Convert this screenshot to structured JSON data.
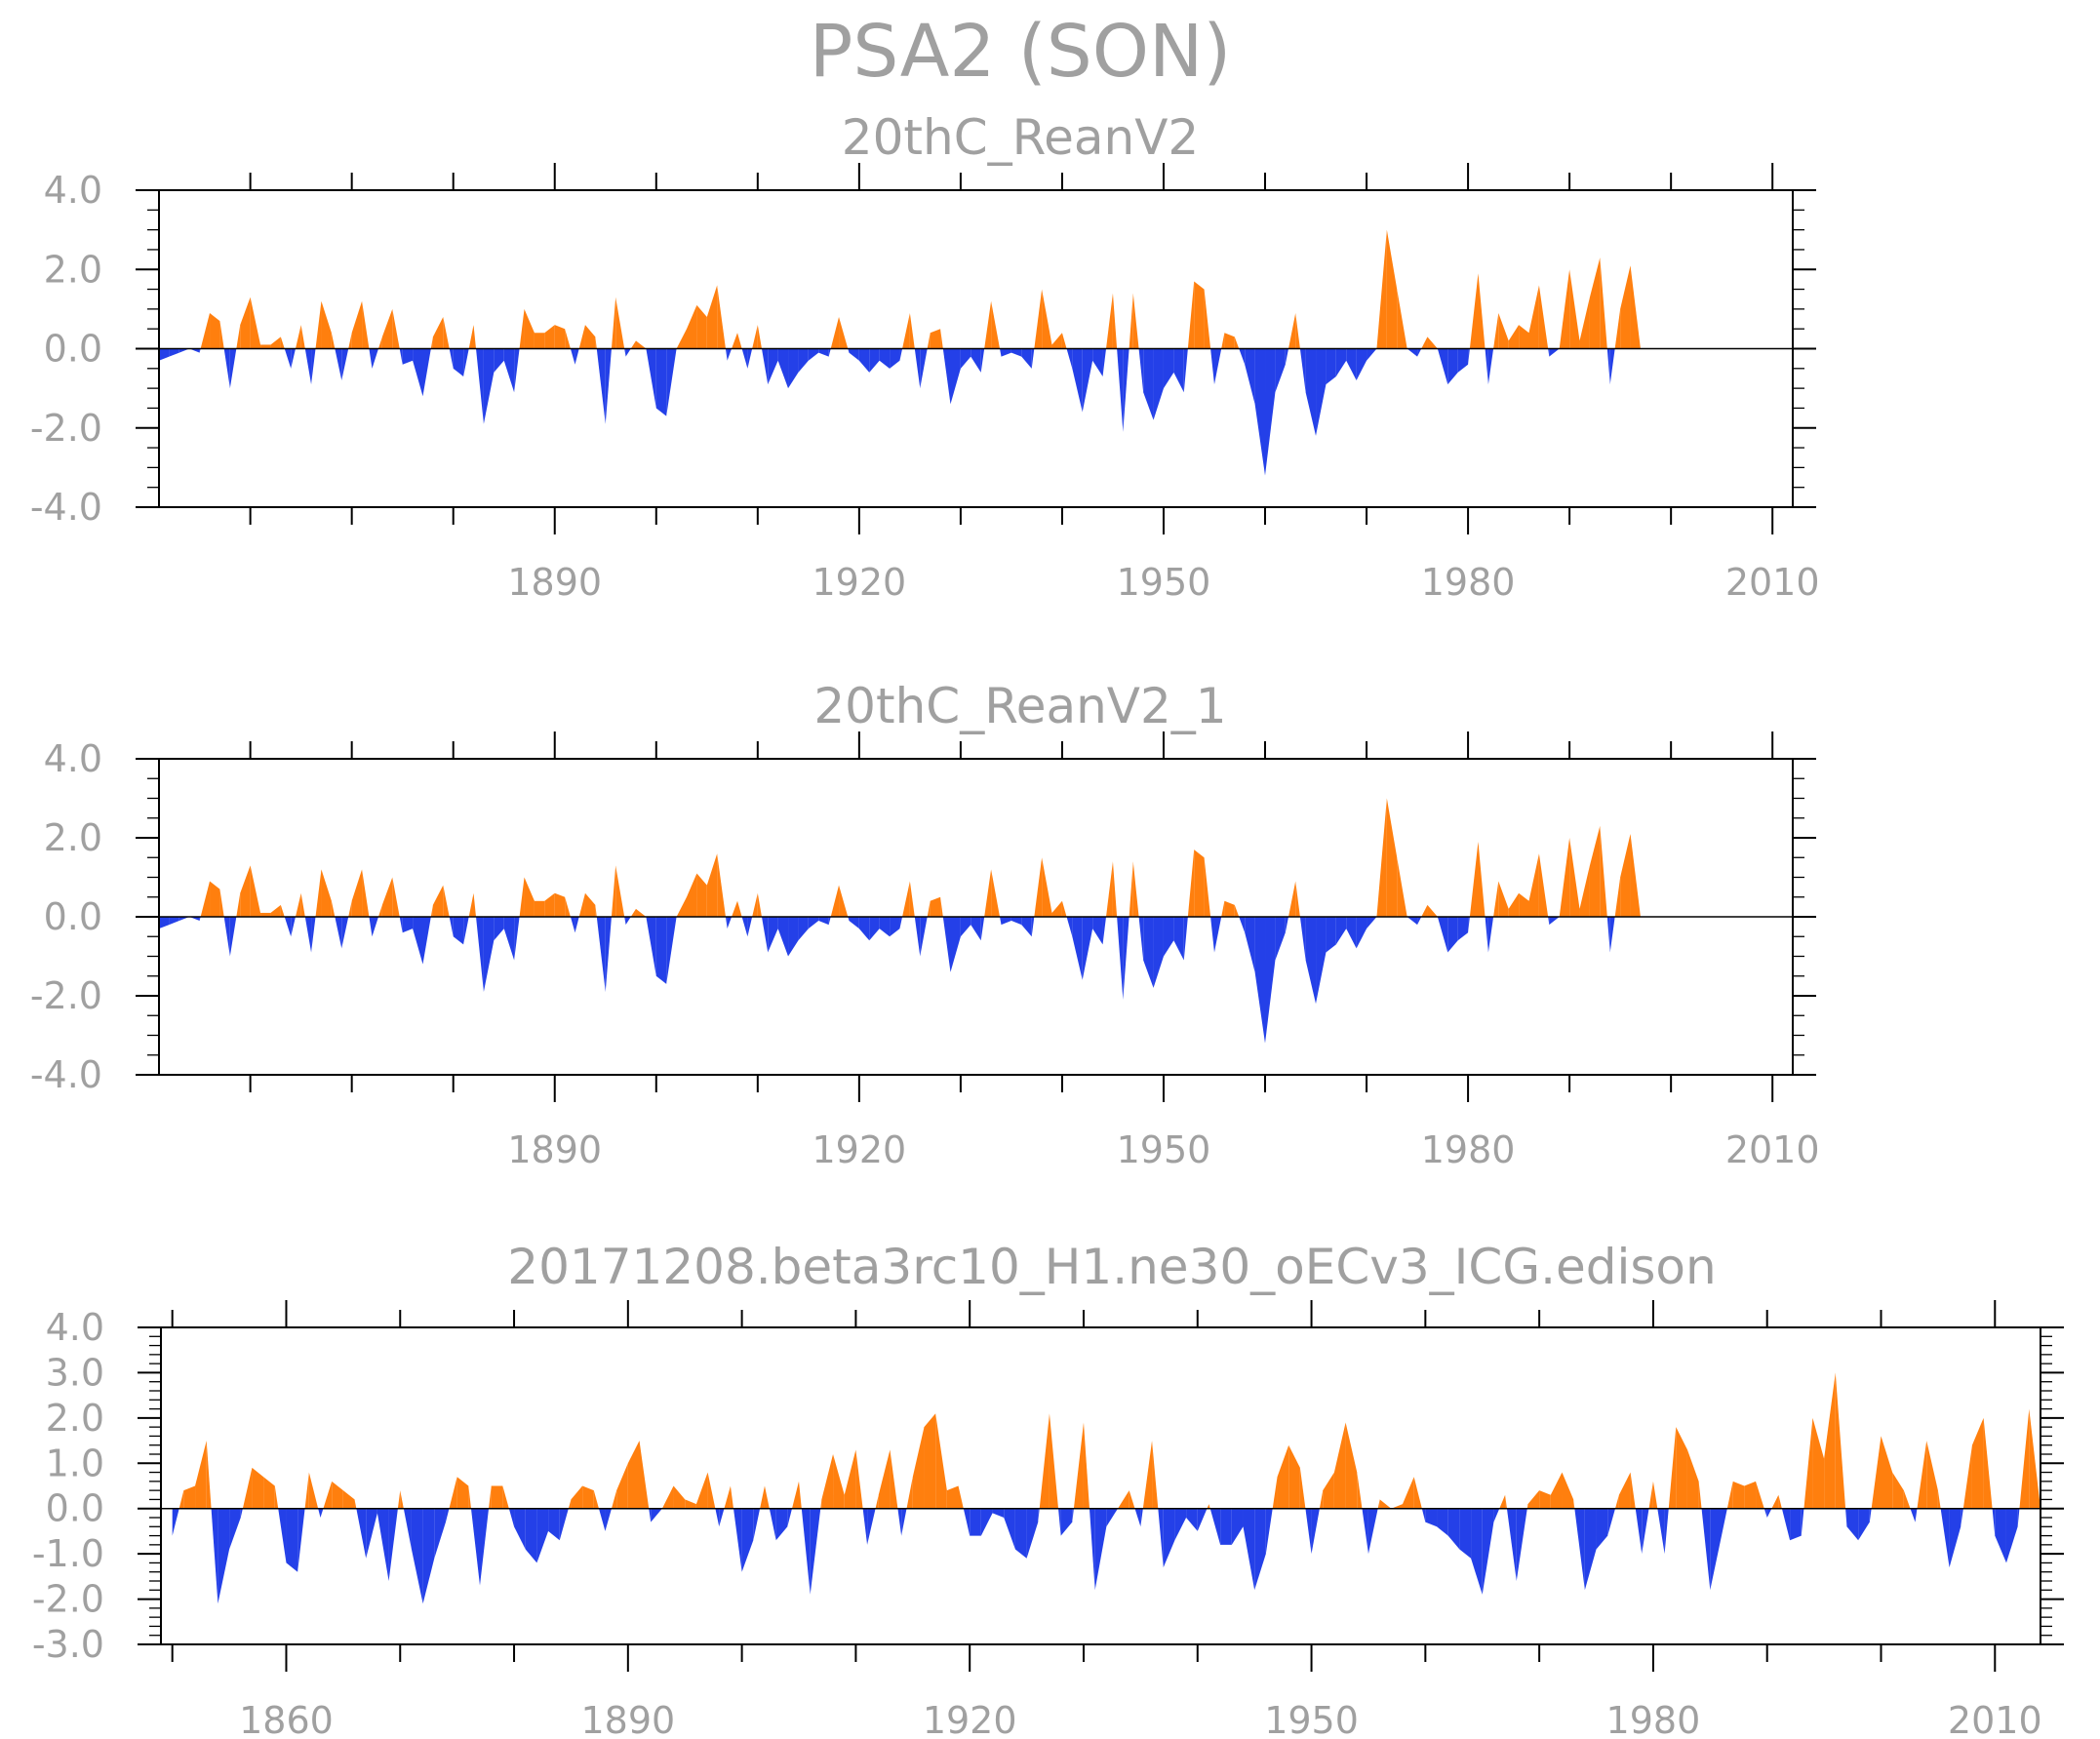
{
  "chart_data": {
    "title": "PSA2 (SON)",
    "colors": {
      "positive": "#ff7f0e",
      "negative": "#2440e8",
      "axis": "#000000",
      "text": "#a0a0a0"
    },
    "panels": [
      {
        "type": "area",
        "title": "20thC_ReanV2",
        "xlim": [
          1851,
          2012
        ],
        "ylim": [
          -4,
          4
        ],
        "xticks": [
          1890,
          1920,
          1950,
          1980,
          2010
        ],
        "xtick_labels": [
          "1890",
          "1920",
          "1950",
          "1980",
          "2010"
        ],
        "yticks": [
          4,
          2,
          0,
          -2,
          -4
        ],
        "ytick_labels": [
          "4.0",
          "2.0",
          "0.0",
          "-2.0",
          "-4.0"
        ],
        "series": [
          {
            "name": "PSA2",
            "x_start": 1851,
            "values": [
              -0.3,
              -0.2,
              -0.1,
              0.0,
              -0.1,
              0.9,
              0.7,
              -1.0,
              0.6,
              1.3,
              0.1,
              0.1,
              0.3,
              -0.5,
              0.6,
              -0.9,
              1.2,
              0.4,
              -0.8,
              0.4,
              1.2,
              -0.5,
              0.3,
              1.0,
              -0.4,
              -0.3,
              -1.2,
              0.3,
              0.8,
              -0.5,
              -0.7,
              0.6,
              -1.9,
              -0.6,
              -0.3,
              -1.1,
              1.0,
              0.4,
              0.4,
              0.6,
              0.5,
              -0.4,
              0.6,
              0.3,
              -1.9,
              1.3,
              -0.2,
              0.2,
              0.0,
              -1.5,
              -1.7,
              0.0,
              0.5,
              1.1,
              0.8,
              1.6,
              -0.3,
              0.4,
              -0.5,
              0.6,
              -0.9,
              -0.3,
              -1.0,
              -0.6,
              -0.3,
              -0.1,
              -0.2,
              0.8,
              -0.1,
              -0.3,
              -0.6,
              -0.3,
              -0.5,
              -0.3,
              0.9,
              -1.0,
              0.4,
              0.5,
              -1.4,
              -0.5,
              -0.2,
              -0.6,
              1.2,
              -0.2,
              -0.1,
              -0.2,
              -0.5,
              1.5,
              0.1,
              0.4,
              -0.5,
              -1.6,
              -0.3,
              -0.7,
              1.4,
              -2.1,
              1.4,
              -1.1,
              -1.8,
              -1.0,
              -0.6,
              -1.1,
              1.7,
              1.5,
              -0.9,
              0.4,
              0.3,
              -0.4,
              -1.4,
              -3.2,
              -1.1,
              -0.4,
              0.9,
              -1.1,
              -2.2,
              -0.9,
              -0.7,
              -0.3,
              -0.8,
              -0.3,
              0.0,
              3.0,
              1.5,
              0.0,
              -0.2,
              0.3,
              0.0,
              -0.9,
              -0.6,
              -0.4,
              1.9,
              -0.9,
              0.9,
              0.2,
              0.6,
              0.4,
              1.6,
              -0.2,
              0.0,
              2.0,
              0.2,
              1.3,
              2.3,
              -0.9,
              1.0,
              2.1,
              0.0
            ]
          }
        ]
      },
      {
        "type": "area",
        "title": "20thC_ReanV2_1",
        "xlim": [
          1851,
          2012
        ],
        "ylim": [
          -4,
          4
        ],
        "xticks": [
          1890,
          1920,
          1950,
          1980,
          2010
        ],
        "xtick_labels": [
          "1890",
          "1920",
          "1950",
          "1980",
          "2010"
        ],
        "yticks": [
          4,
          2,
          0,
          -2,
          -4
        ],
        "ytick_labels": [
          "4.0",
          "2.0",
          "0.0",
          "-2.0",
          "-4.0"
        ],
        "series": [
          {
            "name": "PSA2",
            "x_start": 1851,
            "values": [
              -0.3,
              -0.2,
              -0.1,
              0.0,
              -0.1,
              0.9,
              0.7,
              -1.0,
              0.6,
              1.3,
              0.1,
              0.1,
              0.3,
              -0.5,
              0.6,
              -0.9,
              1.2,
              0.4,
              -0.8,
              0.4,
              1.2,
              -0.5,
              0.3,
              1.0,
              -0.4,
              -0.3,
              -1.2,
              0.3,
              0.8,
              -0.5,
              -0.7,
              0.6,
              -1.9,
              -0.6,
              -0.3,
              -1.1,
              1.0,
              0.4,
              0.4,
              0.6,
              0.5,
              -0.4,
              0.6,
              0.3,
              -1.9,
              1.3,
              -0.2,
              0.2,
              0.0,
              -1.5,
              -1.7,
              0.0,
              0.5,
              1.1,
              0.8,
              1.6,
              -0.3,
              0.4,
              -0.5,
              0.6,
              -0.9,
              -0.3,
              -1.0,
              -0.6,
              -0.3,
              -0.1,
              -0.2,
              0.8,
              -0.1,
              -0.3,
              -0.6,
              -0.3,
              -0.5,
              -0.3,
              0.9,
              -1.0,
              0.4,
              0.5,
              -1.4,
              -0.5,
              -0.2,
              -0.6,
              1.2,
              -0.2,
              -0.1,
              -0.2,
              -0.5,
              1.5,
              0.1,
              0.4,
              -0.5,
              -1.6,
              -0.3,
              -0.7,
              1.4,
              -2.1,
              1.4,
              -1.1,
              -1.8,
              -1.0,
              -0.6,
              -1.1,
              1.7,
              1.5,
              -0.9,
              0.4,
              0.3,
              -0.4,
              -1.4,
              -3.2,
              -1.1,
              -0.4,
              0.9,
              -1.1,
              -2.2,
              -0.9,
              -0.7,
              -0.3,
              -0.8,
              -0.3,
              0.0,
              3.0,
              1.5,
              0.0,
              -0.2,
              0.3,
              0.0,
              -0.9,
              -0.6,
              -0.4,
              1.9,
              -0.9,
              0.9,
              0.2,
              0.6,
              0.4,
              1.6,
              -0.2,
              0.0,
              2.0,
              0.2,
              1.3,
              2.3,
              -0.9,
              1.0,
              2.1,
              0.0
            ]
          }
        ]
      },
      {
        "type": "area",
        "title": "20171208.beta3rc10_H1.ne30_oECv3_ICG.edison",
        "xlim": [
          1849,
          2014
        ],
        "ylim": [
          -3,
          4
        ],
        "xticks": [
          1860,
          1890,
          1920,
          1950,
          1980,
          2010
        ],
        "xtick_labels": [
          "1860",
          "1890",
          "1920",
          "1950",
          "1980",
          "2010"
        ],
        "yticks": [
          4,
          3,
          2,
          1,
          0,
          -1,
          -2,
          -3
        ],
        "ytick_labels": [
          "4.0",
          "3.0",
          "2.0",
          "1.0",
          "0.0",
          "-1.0",
          "-2.0",
          "-3.0"
        ],
        "series": [
          {
            "name": "PSA2",
            "x_start": 1850,
            "values": [
              -0.6,
              0.4,
              0.5,
              1.5,
              -2.1,
              -0.9,
              -0.2,
              0.9,
              0.7,
              0.5,
              -1.2,
              -1.4,
              0.8,
              -0.2,
              0.6,
              0.4,
              0.2,
              -1.1,
              -0.1,
              -1.6,
              0.4,
              -0.9,
              -2.1,
              -1.1,
              -0.3,
              0.7,
              0.5,
              -1.7,
              0.5,
              0.5,
              -0.4,
              -0.9,
              -1.2,
              -0.5,
              -0.7,
              0.2,
              0.5,
              0.4,
              -0.5,
              0.4,
              1.0,
              1.5,
              -0.3,
              0.0,
              0.5,
              0.2,
              0.1,
              0.8,
              -0.4,
              0.5,
              -1.4,
              -0.7,
              0.5,
              -0.7,
              -0.4,
              0.6,
              -1.9,
              0.2,
              1.2,
              0.3,
              1.3,
              -0.8,
              0.3,
              1.3,
              -0.6,
              0.7,
              1.8,
              2.1,
              0.4,
              0.5,
              -0.6,
              -0.6,
              -0.1,
              -0.2,
              -0.9,
              -1.1,
              -0.3,
              2.1,
              -0.6,
              -0.3,
              1.9,
              -1.8,
              -0.4,
              0.0,
              0.4,
              -0.4,
              1.5,
              -1.3,
              -0.7,
              -0.2,
              -0.5,
              0.1,
              -0.8,
              -0.8,
              -0.4,
              -1.8,
              -1.0,
              0.7,
              1.4,
              0.9,
              -1.0,
              0.4,
              0.8,
              1.9,
              0.8,
              -1.0,
              0.2,
              0.0,
              0.1,
              0.7,
              -0.3,
              -0.4,
              -0.6,
              -0.9,
              -1.1,
              -1.9,
              -0.3,
              0.3,
              -1.6,
              0.1,
              0.4,
              0.3,
              0.8,
              0.2,
              -1.8,
              -0.9,
              -0.6,
              0.3,
              0.8,
              -1.0,
              0.6,
              -1.0,
              1.8,
              1.3,
              0.6,
              -1.8,
              -0.6,
              0.6,
              0.5,
              0.6,
              -0.2,
              0.3,
              -0.7,
              -0.6,
              2.0,
              1.1,
              3.0,
              -0.4,
              -0.7,
              -0.3,
              1.6,
              0.8,
              0.4,
              -0.3,
              1.5,
              0.4,
              -1.3,
              -0.4,
              1.4,
              2.0,
              -0.6,
              -1.2,
              -0.4,
              2.2,
              0.0
            ]
          }
        ]
      }
    ]
  }
}
